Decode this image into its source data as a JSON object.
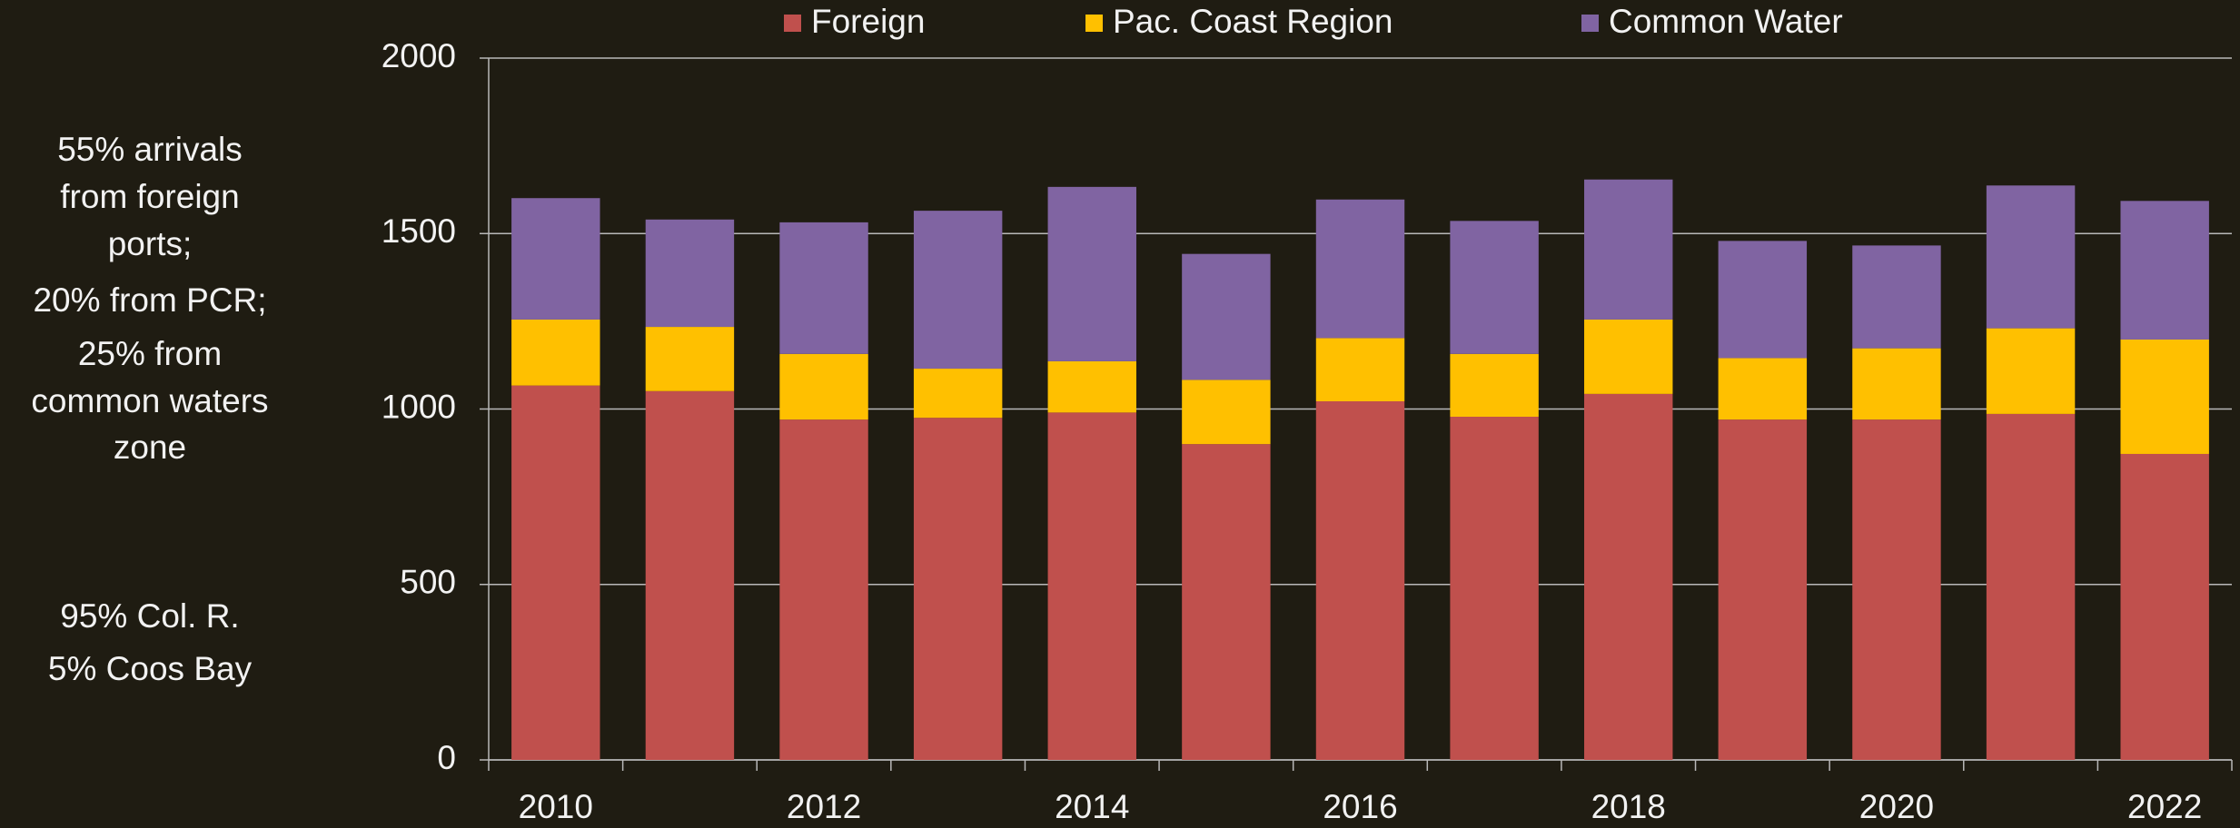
{
  "chart_data": {
    "type": "stacked_bar",
    "categories": [
      "2010",
      null,
      "2012",
      null,
      "2014",
      null,
      "2016",
      null,
      "2018",
      null,
      "2020",
      null,
      "2022"
    ],
    "series": [
      {
        "name": "Foreign",
        "color": "#c0504d",
        "values": [
          1067,
          1051,
          970,
          975,
          990,
          900,
          1022,
          978,
          1043,
          970,
          970,
          986,
          872
        ]
      },
      {
        "name": "Pac. Coast Region",
        "color": "#ffc000",
        "values": [
          188,
          183,
          187,
          140,
          146,
          183,
          180,
          179,
          212,
          175,
          203,
          244,
          326
        ]
      },
      {
        "name": "Common Water",
        "color": "#8064a2",
        "values": [
          346,
          306,
          375,
          450,
          497,
          359,
          395,
          379,
          399,
          334,
          293,
          407,
          395
        ]
      }
    ],
    "ylim": [
      0,
      2000
    ],
    "yticks": [
      0,
      500,
      1000,
      1500,
      2000
    ],
    "grid": true,
    "legend": "top",
    "annotations": [
      "55% arrivals",
      "from foreign",
      "ports;",
      "20% from PCR;",
      "25% from",
      "common  waters",
      "zone",
      "95% Col. R.",
      "5% Coos Bay"
    ]
  }
}
